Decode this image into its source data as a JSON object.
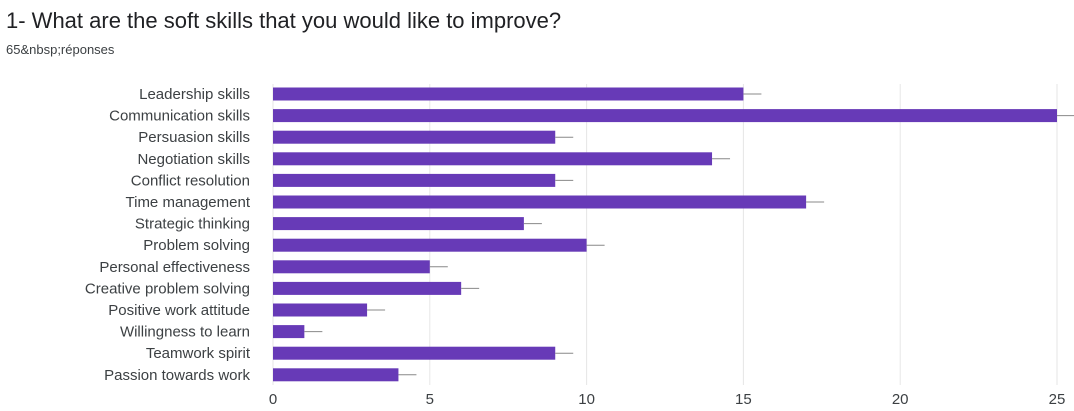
{
  "header": {
    "title": "1- What are the soft skills that you would like to improve?",
    "subtitle": "65&nbsp;réponses"
  },
  "colors": {
    "bar": "#673ab7",
    "grid": "#e6e6e6",
    "axis": "#3c4043",
    "error_bar": "#888888"
  },
  "chart_data": {
    "type": "bar",
    "orientation": "horizontal",
    "categories": [
      "Leadership skills",
      "Communication skills",
      "Persuasion skills",
      "Negotiation skills",
      "Conflict resolution",
      "Time management",
      "Strategic thinking",
      "Problem solving",
      "Personal effectiveness",
      "Creative problem solving",
      "Positive work attitude",
      "Willingness to learn",
      "Teamwork spirit",
      "Passion towards work"
    ],
    "values": [
      15,
      25,
      9,
      14,
      9,
      17,
      8,
      10,
      5,
      6,
      3,
      1,
      9,
      4
    ],
    "xlim": [
      0,
      25
    ],
    "xticks": [
      "0",
      "5",
      "10",
      "15",
      "20",
      "25"
    ],
    "grid": true,
    "error_bars": true
  }
}
